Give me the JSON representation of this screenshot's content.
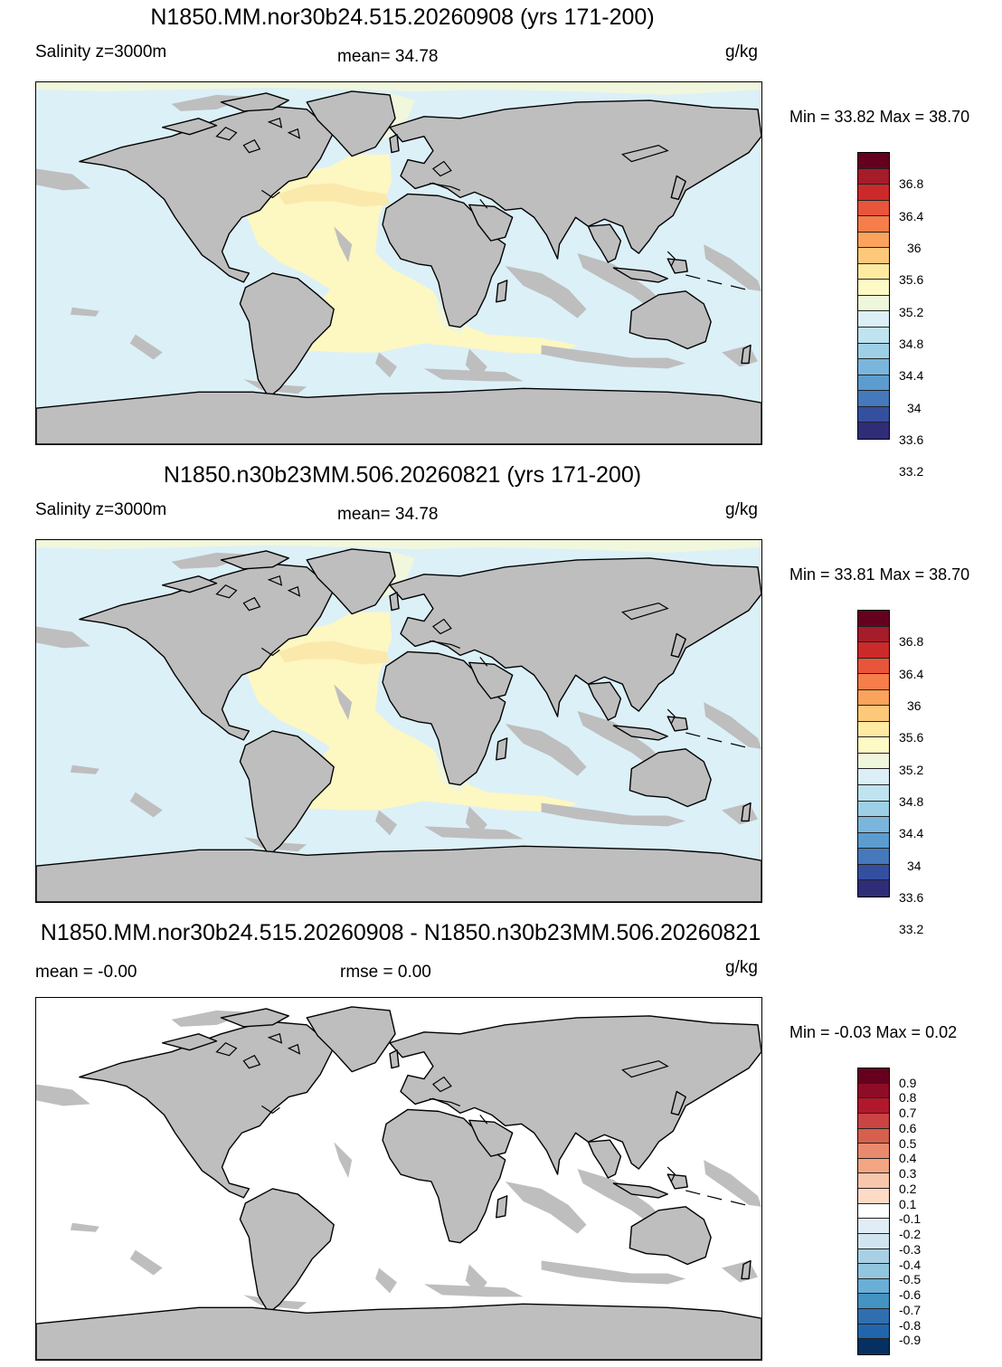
{
  "panels": [
    {
      "title": "N1850.MM.nor30b24.515.20260908 (yrs 171-200)",
      "left_label": "Salinity z=3000m",
      "center_label": "mean=  34.78",
      "units": "g/kg",
      "minmax": "Min =  33.82 Max =  38.70",
      "cbar_labels": [
        "36.8",
        "36.4",
        "36",
        "35.6",
        "35.2",
        "34.8",
        "34.4",
        "34",
        "33.6",
        "33.2"
      ]
    },
    {
      "title": "N1850.n30b23MM.506.20260821 (yrs 171-200)",
      "left_label": "Salinity z=3000m",
      "center_label": "mean=  34.78",
      "units": "g/kg",
      "minmax": "Min =  33.81 Max =  38.70",
      "cbar_labels": [
        "36.8",
        "36.4",
        "36",
        "35.6",
        "35.2",
        "34.8",
        "34.4",
        "34",
        "33.6",
        "33.2"
      ]
    },
    {
      "title": "N1850.MM.nor30b24.515.20260908 - N1850.n30b23MM.506.20260821",
      "left_label": "mean =  -0.00",
      "center_label": "rmse =    0.00",
      "units": "g/kg",
      "minmax": "Min =  -0.03 Max =   0.02",
      "cbar_labels": [
        "0.9",
        "0.8",
        "0.7",
        "0.6",
        "0.5",
        "0.4",
        "0.3",
        "0.2",
        "0.1",
        "-0.1",
        "-0.2",
        "-0.3",
        "-0.4",
        "-0.5",
        "-0.6",
        "-0.7",
        "-0.8",
        "-0.9"
      ]
    }
  ],
  "colors": {
    "land": "#bebebe",
    "ocean_salinity": "#dcf0f8",
    "atlantic_salinity": "#fdf7c2",
    "nordic_salinity": "#f0f7dc",
    "ocean_diff": "#ffffff",
    "salinity_scale": [
      "#66001f",
      "#a51c2a",
      "#cc2a2a",
      "#e8553a",
      "#f57e4a",
      "#fba25c",
      "#fdc879",
      "#feeaa0",
      "#fefac6",
      "#eef7dc",
      "#dceff7",
      "#bfe3ef",
      "#9dd0e6",
      "#7ab6dc",
      "#5c9ccf",
      "#4579bc",
      "#354f9f",
      "#2f2d77"
    ],
    "diff_scale": [
      "#67001f",
      "#8e0d26",
      "#b2182b",
      "#c94442",
      "#d6604d",
      "#e98a6e",
      "#f4a582",
      "#f8c6ad",
      "#fddbc7",
      "#ffffff",
      "#e1edf4",
      "#d1e5f0",
      "#a9cfe5",
      "#92c5de",
      "#6baed6",
      "#4393c3",
      "#2f6fb0",
      "#2166ac",
      "#053061"
    ]
  }
}
